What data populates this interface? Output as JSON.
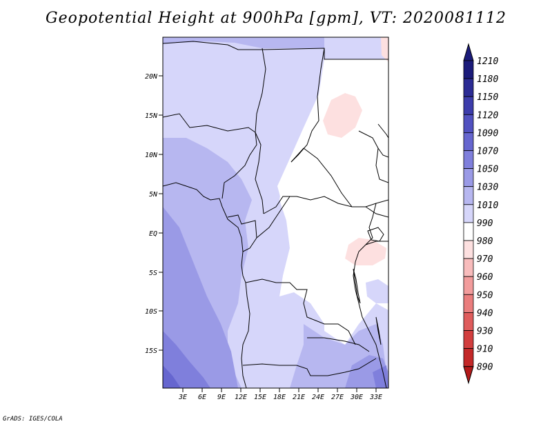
{
  "title": "Geopotential Height at 900hPa [gpm], VT: 2020081112",
  "credit": "GrADS: IGES/COLA",
  "chart_data": {
    "type": "map-contour-fill",
    "variable": "Geopotential Height",
    "level": "900hPa",
    "units": "gpm",
    "valid_time": "2020081112",
    "lat_ticks": [
      "20N",
      "15N",
      "10N",
      "5N",
      "EQ",
      "5S",
      "10S",
      "15S"
    ],
    "lon_ticks": [
      "3E",
      "6E",
      "9E",
      "12E",
      "15E",
      "18E",
      "21E",
      "24E",
      "27E",
      "30E",
      "33E"
    ],
    "colorbar": {
      "levels": [
        "1210",
        "1180",
        "1150",
        "1120",
        "1090",
        "1070",
        "1050",
        "1030",
        "1010",
        "990",
        "980",
        "970",
        "960",
        "950",
        "940",
        "930",
        "910",
        "890"
      ],
      "colors": [
        "#1b1b7a",
        "#2b2b94",
        "#3c3cab",
        "#5151c0",
        "#6666cf",
        "#7f7fdc",
        "#9a9ae6",
        "#b7b7f0",
        "#d6d6fa",
        "#ffffff",
        "#fde0e0",
        "#f8bcbc",
        "#f29c9c",
        "#ea7d7d",
        "#df5c5c",
        "#d23e3e",
        "#c32828",
        "#b31919"
      ]
    }
  }
}
